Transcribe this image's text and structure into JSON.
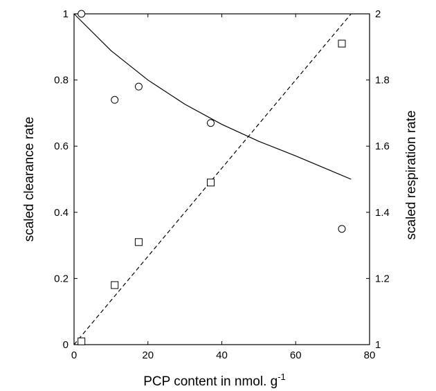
{
  "chart_data": {
    "type": "scatter",
    "title": "",
    "xlabel": "PCP content in nmol. g",
    "xlabel_superscript": "-1",
    "ylabel_left": "scaled clearance rate",
    "ylabel_right": "scaled respiration rate",
    "xlim": [
      0,
      80
    ],
    "ylim_left": [
      0,
      1
    ],
    "ylim_right": [
      1,
      2
    ],
    "x_ticks": [
      0,
      20,
      40,
      60,
      80
    ],
    "y_left_ticks": [
      0,
      0.2,
      0.4,
      0.6,
      0.8,
      1
    ],
    "y_right_ticks": [
      1,
      1.2,
      1.4,
      1.6,
      1.8,
      2
    ],
    "grid": false,
    "series": [
      {
        "axis": "left",
        "marker": "circle",
        "points": [
          {
            "x": 2,
            "y": 1.0
          },
          {
            "x": 11,
            "y": 0.74
          },
          {
            "x": 17.5,
            "y": 0.78
          },
          {
            "x": 37,
            "y": 0.67
          },
          {
            "x": 72.5,
            "y": 0.35
          }
        ]
      },
      {
        "axis": "right",
        "marker": "square",
        "points": [
          {
            "x": 2,
            "y": 1.01
          },
          {
            "x": 11,
            "y": 1.18
          },
          {
            "x": 17.5,
            "y": 1.31
          },
          {
            "x": 37,
            "y": 1.49
          },
          {
            "x": 72.5,
            "y": 1.91
          }
        ]
      },
      {
        "axis": "left",
        "style": "solid",
        "points": [
          {
            "x": 0,
            "y": 1.0
          },
          {
            "x": 10,
            "y": 0.8887
          },
          {
            "x": 20,
            "y": 0.7997
          },
          {
            "x": 30,
            "y": 0.7268
          },
          {
            "x": 40,
            "y": 0.666
          },
          {
            "x": 50,
            "y": 0.6146
          },
          {
            "x": 60,
            "y": 0.5705
          },
          {
            "x": 75,
            "y": 0.5
          }
        ]
      },
      {
        "axis": "right",
        "style": "dashed",
        "points": [
          {
            "x": 0,
            "y": 1.0
          },
          {
            "x": 75,
            "y": 2.0
          }
        ]
      }
    ]
  }
}
